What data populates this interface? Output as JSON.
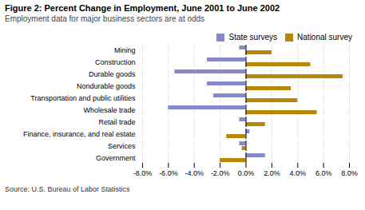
{
  "chart_data": {
    "type": "bar",
    "orientation": "horizontal",
    "title": "Figure 2: Percent Change in Employment, June 2001 to June 2002",
    "subtitle": "Employment data for major business sectors are at odds",
    "annotations": [
      "Source: U.S. Bureau of Labor Statistics"
    ],
    "categories": [
      "Government",
      "Services",
      "Finance, insurance, and real estate",
      "Retail trade",
      "Wholesale trade",
      "Transportation and public utilities",
      "Nondurable goods",
      "Durable goods",
      "Construction",
      "Mining"
    ],
    "series": [
      {
        "name": "State surveys",
        "color": "#8888cc",
        "values": [
          1.5,
          -0.5,
          0.3,
          -0.5,
          -6.0,
          -2.5,
          -3.0,
          -5.5,
          -3.0,
          -0.5
        ]
      },
      {
        "name": "National survey",
        "color": "#b8860b",
        "values": [
          -2.0,
          -0.3,
          -1.5,
          1.5,
          5.5,
          4.0,
          3.5,
          7.5,
          5.0,
          2.0
        ]
      }
    ],
    "xlim": [
      -8.0,
      8.0
    ],
    "xticks": [
      {
        "value": -8.0,
        "label": "-8.0%"
      },
      {
        "value": -6.0,
        "label": "-6.0%"
      },
      {
        "value": -4.0,
        "label": "-4.0%"
      },
      {
        "value": -2.0,
        "label": "-2.0%"
      },
      {
        "value": 0.0,
        "label": "0.0%"
      },
      {
        "value": 2.0,
        "label": "2.0%"
      },
      {
        "value": 4.0,
        "label": "4.0%"
      },
      {
        "value": 6.0,
        "label": "6.0%"
      },
      {
        "value": 8.0,
        "label": "8.0%"
      }
    ],
    "grid": true,
    "legend": "top"
  }
}
